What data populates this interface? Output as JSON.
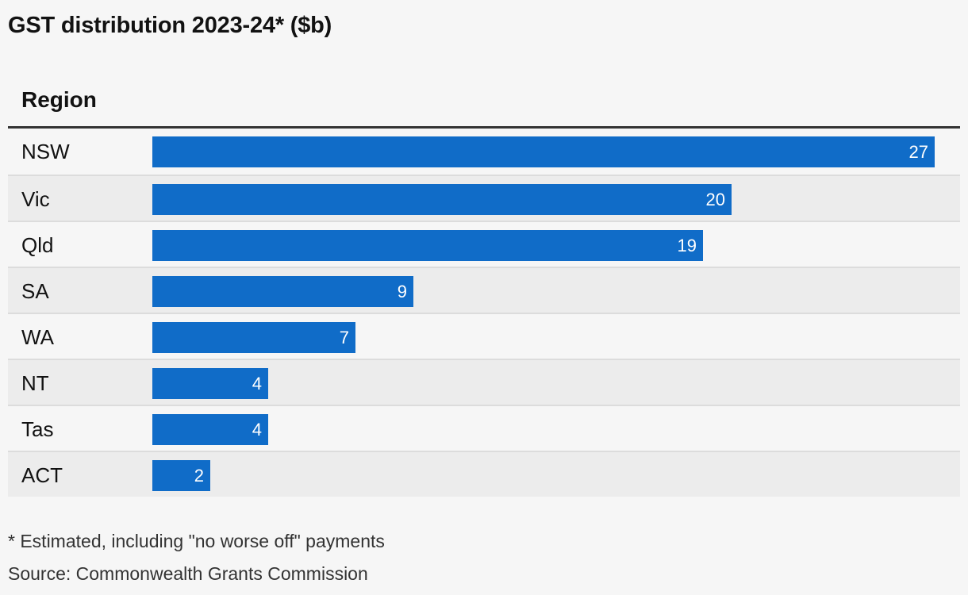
{
  "chart_data": {
    "type": "bar",
    "orientation": "horizontal",
    "title": "GST distribution 2023-24* ($b)",
    "column_header": "Region",
    "categories": [
      "NSW",
      "Vic",
      "Qld",
      "SA",
      "WA",
      "NT",
      "Tas",
      "ACT"
    ],
    "values": [
      27,
      20,
      19,
      9,
      7,
      4,
      4,
      2
    ],
    "bar_color": "#106cc8",
    "grid": false,
    "legend": "none"
  },
  "footnote": "* Estimated, including \"no worse off\" payments",
  "source": "Source: Commonwealth Grants Commission"
}
